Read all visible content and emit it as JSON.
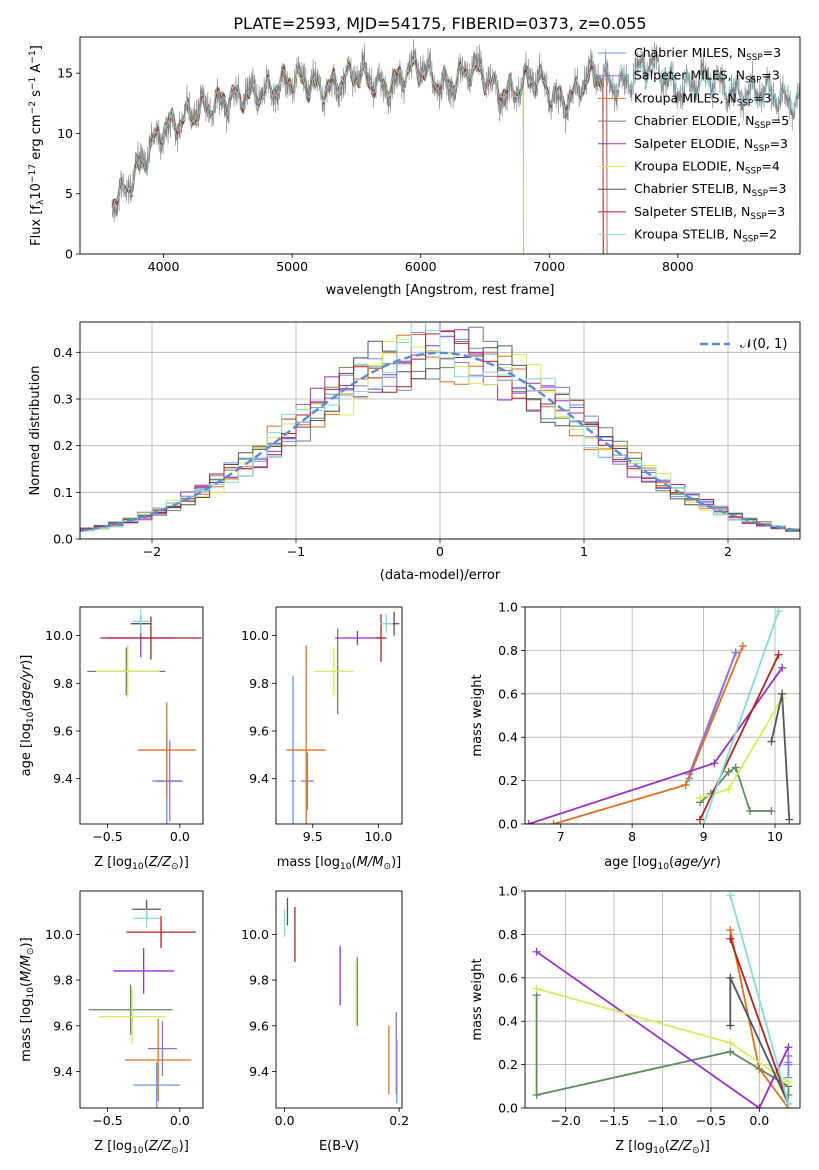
{
  "figure": {
    "title": "PLATE=2593, MJD=54175, FIBERID=0373, z=0.055"
  },
  "models": [
    {
      "name": "Chabrier MILES",
      "nssp": "3",
      "color": "#6495ed"
    },
    {
      "name": "Salpeter MILES",
      "nssp": "3",
      "color": "#9370db"
    },
    {
      "name": "Kroupa MILES",
      "nssp": "3",
      "color": "#e07020"
    },
    {
      "name": "Chabrier ELODIE",
      "nssp": "5",
      "color": "#5f8b5f"
    },
    {
      "name": "Salpeter ELODIE",
      "nssp": "3",
      "color": "#9932cc"
    },
    {
      "name": "Kroupa ELODIE",
      "nssp": "4",
      "color": "#d4ed5a"
    },
    {
      "name": "Chabrier STELIB",
      "nssp": "3",
      "color": "#555555"
    },
    {
      "name": "Salpeter STELIB",
      "nssp": "3",
      "color": "#b22222"
    },
    {
      "name": "Kroupa STELIB",
      "nssp": "2",
      "color": "#87dcdc"
    }
  ],
  "chart_data": [
    {
      "id": "spectrum",
      "type": "line",
      "xlabel": "wavelength [Angstrom, rest frame]",
      "ylabel": "Flux [f",
      "xlim": [
        3350,
        8950
      ],
      "ylim": [
        0,
        18
      ],
      "xticks": [
        4000,
        5000,
        6000,
        7000,
        8000
      ],
      "yticks": [
        0,
        5,
        10,
        15
      ],
      "continuum": [
        [
          3600,
          4.5
        ],
        [
          3700,
          5.8
        ],
        [
          3800,
          7.0
        ],
        [
          3900,
          8.5
        ],
        [
          4000,
          10.2
        ],
        [
          4100,
          11.0
        ],
        [
          4200,
          11.8
        ],
        [
          4400,
          12.3
        ],
        [
          4600,
          13.1
        ],
        [
          4800,
          13.7
        ],
        [
          5000,
          14.2
        ],
        [
          5200,
          14.1
        ],
        [
          5500,
          14.4
        ],
        [
          5800,
          14.5
        ],
        [
          6000,
          14.8
        ],
        [
          6300,
          14.7
        ],
        [
          6600,
          14.2
        ],
        [
          6800,
          13.8
        ],
        [
          7000,
          13.5
        ],
        [
          7200,
          13.6
        ],
        [
          7400,
          14.2
        ],
        [
          7600,
          15.1
        ],
        [
          7800,
          14.9
        ],
        [
          8000,
          14.4
        ],
        [
          8200,
          14.1
        ],
        [
          8400,
          13.8
        ],
        [
          8600,
          13.4
        ],
        [
          8800,
          13.0
        ],
        [
          8950,
          12.6
        ]
      ],
      "data_range": [
        3600,
        8950
      ],
      "model_ranges": [
        [
          3600,
          7450
        ],
        [
          3600,
          7450
        ],
        [
          3600,
          7450
        ],
        [
          3600,
          6800
        ],
        [
          3600,
          6800
        ],
        [
          3600,
          6800
        ],
        [
          3600,
          7420
        ],
        [
          3600,
          7420
        ],
        [
          3600,
          8950
        ]
      ],
      "data_color": "#808080",
      "legend": "right"
    },
    {
      "id": "residuals",
      "type": "histogram",
      "xlabel": "(data-model)/error",
      "ylabel": "Normed distribution",
      "xlim": [
        -2.5,
        2.5
      ],
      "ylim": [
        0,
        0.465
      ],
      "xticks": [
        -2,
        -1,
        0,
        1,
        2
      ],
      "yticks": [
        0,
        0.1,
        0.2,
        0.3,
        0.4
      ],
      "bin_width": 0.1,
      "reference": {
        "name": "𝒩(0, 1)",
        "mean": 0,
        "sigma": 1,
        "color": "#5b8bd6"
      },
      "grid": true,
      "legend": "top-right"
    },
    {
      "id": "age-vs-z",
      "type": "errorbar",
      "xlabel": "Z [log",
      "ylabel": "age  [log",
      "xlim": [
        -0.69,
        0.16
      ],
      "ylim": [
        9.21,
        10.12
      ],
      "xticks": [
        -0.5,
        0.0
      ],
      "yticks": [
        9.4,
        9.6,
        9.8,
        10.0
      ],
      "points": [
        {
          "x": -0.09,
          "xerr": 0.1,
          "y": 9.39,
          "yerr": 0.21
        },
        {
          "x": -0.07,
          "xerr": 0.09,
          "y": 9.39,
          "yerr": 0.17
        },
        {
          "x": -0.09,
          "xerr": 0.2,
          "y": 9.52,
          "yerr": 0.2
        },
        {
          "x": -0.37,
          "xerr": 0.27,
          "y": 9.85,
          "yerr": 0.1
        },
        {
          "x": -0.27,
          "xerr": 0.23,
          "y": 9.99,
          "yerr": 0.08
        },
        {
          "x": -0.36,
          "xerr": 0.22,
          "y": 9.85,
          "yerr": 0.11
        },
        {
          "x": -0.27,
          "xerr": 0.07,
          "y": 10.05,
          "yerr": 0.04
        },
        {
          "x": -0.2,
          "xerr": 0.35,
          "y": 9.99,
          "yerr": 0.09
        },
        {
          "x": -0.27,
          "xerr": 0.06,
          "y": 10.06,
          "yerr": 0.05
        }
      ]
    },
    {
      "id": "age-vs-mass",
      "type": "errorbar",
      "xlabel": "mass [log",
      "ylabel": "",
      "xlim": [
        9.22,
        10.18
      ],
      "ylim": [
        9.21,
        10.12
      ],
      "xticks": [
        9.5,
        10.0
      ],
      "yticks": [
        9.4,
        9.6,
        9.8,
        10.0
      ],
      "points": [
        {
          "x": 9.35,
          "xerr": 0.02,
          "y": 9.39,
          "yerr": 0.44
        },
        {
          "x": 9.46,
          "xerr": 0.05,
          "y": 9.39,
          "yerr": 0.12
        },
        {
          "x": 9.45,
          "xerr": 0.15,
          "y": 9.52,
          "yerr": 0.44
        },
        {
          "x": 9.69,
          "xerr": 0.04,
          "y": 9.85,
          "yerr": 0.18
        },
        {
          "x": 9.84,
          "xerr": 0.17,
          "y": 9.99,
          "yerr": 0.03
        },
        {
          "x": 9.66,
          "xerr": 0.15,
          "y": 9.85,
          "yerr": 0.1
        },
        {
          "x": 10.12,
          "xerr": 0.04,
          "y": 10.05,
          "yerr": 0.05
        },
        {
          "x": 10.02,
          "xerr": 0.04,
          "y": 9.99,
          "yerr": 0.1
        },
        {
          "x": 10.06,
          "xerr": 0.05,
          "y": 10.05,
          "yerr": 0.04
        }
      ]
    },
    {
      "id": "weights-vs-age",
      "type": "line",
      "xlabel": "age  [log",
      "ylabel": "mass weight",
      "xlim": [
        6.5,
        10.35
      ],
      "ylim": [
        0,
        1
      ],
      "xticks": [
        7,
        8,
        9,
        10
      ],
      "yticks": [
        0.0,
        0.2,
        0.4,
        0.6,
        0.8,
        1.0
      ],
      "grid": true,
      "series": [
        {
          "x": [
            8.8,
            9.45
          ],
          "y": [
            0.21,
            0.79
          ]
        },
        {
          "x": [
            8.8,
            9.45
          ],
          "y": [
            0.23,
            0.79
          ]
        },
        {
          "x": [
            6.9,
            8.75,
            9.55
          ],
          "y": [
            0.0,
            0.18,
            0.82
          ]
        },
        {
          "x": [
            8.95,
            9.1,
            9.35,
            9.45,
            9.65,
            9.95
          ],
          "y": [
            0.1,
            0.14,
            0.24,
            0.26,
            0.06,
            0.06
          ]
        },
        {
          "x": [
            6.55,
            9.15,
            10.1
          ],
          "y": [
            0.0,
            0.28,
            0.72
          ]
        },
        {
          "x": [
            8.95,
            9.35,
            10.1
          ],
          "y": [
            0.12,
            0.16,
            0.58
          ]
        },
        {
          "x": [
            9.95,
            10.1,
            10.2
          ],
          "y": [
            0.38,
            0.6,
            0.02
          ]
        },
        {
          "x": [
            8.95,
            10.05
          ],
          "y": [
            0.02,
            0.78
          ]
        },
        {
          "x": [
            9.0,
            10.05
          ],
          "y": [
            0.0,
            0.98
          ]
        }
      ]
    },
    {
      "id": "mass-vs-z",
      "type": "errorbar",
      "xlabel": "Z [log",
      "ylabel": "mass [log",
      "xlim": [
        -0.69,
        0.16
      ],
      "ylim": [
        9.24,
        10.19
      ],
      "xticks": [
        -0.5,
        0.0
      ],
      "yticks": [
        9.4,
        9.6,
        9.8,
        10.0
      ],
      "points": [
        {
          "x": -0.16,
          "xerr": 0.16,
          "y": 9.34,
          "yerr": 0.1
        },
        {
          "x": -0.12,
          "xerr": 0.1,
          "y": 9.5,
          "yerr": 0.12
        },
        {
          "x": -0.15,
          "xerr": 0.23,
          "y": 9.45,
          "yerr": 0.18
        },
        {
          "x": -0.34,
          "xerr": 0.29,
          "y": 9.67,
          "yerr": 0.11
        },
        {
          "x": -0.25,
          "xerr": 0.21,
          "y": 9.84,
          "yerr": 0.1
        },
        {
          "x": -0.33,
          "xerr": 0.23,
          "y": 9.64,
          "yerr": 0.12
        },
        {
          "x": -0.23,
          "xerr": 0.1,
          "y": 10.11,
          "yerr": 0.04
        },
        {
          "x": -0.13,
          "xerr": 0.24,
          "y": 10.01,
          "yerr": 0.07
        },
        {
          "x": -0.23,
          "xerr": 0.09,
          "y": 10.07,
          "yerr": 0.04
        }
      ]
    },
    {
      "id": "mass-vs-ebv",
      "type": "errorbar",
      "xlabel": "E(B-V)",
      "ylabel": "",
      "xlim": [
        -0.015,
        0.205
      ],
      "ylim": [
        9.24,
        10.19
      ],
      "xticks": [
        0.0,
        0.2
      ],
      "yticks": [
        9.4,
        9.6,
        9.8,
        10.0
      ],
      "points": [
        {
          "x": 0.196,
          "xerr": 0,
          "y": 9.4,
          "yerr": 0.14
        },
        {
          "x": 0.195,
          "xerr": 0,
          "y": 9.48,
          "yerr": 0.18
        },
        {
          "x": 0.182,
          "xerr": 0,
          "y": 9.45,
          "yerr": 0.15
        },
        {
          "x": 0.127,
          "xerr": 0,
          "y": 9.75,
          "yerr": 0.15
        },
        {
          "x": 0.097,
          "xerr": 0,
          "y": 9.82,
          "yerr": 0.13
        },
        {
          "x": 0.125,
          "xerr": 0,
          "y": 9.74,
          "yerr": 0.14
        },
        {
          "x": 0.005,
          "xerr": 0,
          "y": 10.1,
          "yerr": 0.06
        },
        {
          "x": 0.018,
          "xerr": 0,
          "y": 10.0,
          "yerr": 0.12
        },
        {
          "x": 0.0,
          "xerr": 0,
          "y": 10.05,
          "yerr": 0.06
        }
      ]
    },
    {
      "id": "weights-vs-z",
      "type": "line",
      "xlabel": "Z [log",
      "ylabel": "mass weight",
      "xlim": [
        -2.42,
        0.42
      ],
      "ylim": [
        0,
        1
      ],
      "xticks": [
        -2.0,
        -1.5,
        -1.0,
        -0.5,
        0.0
      ],
      "yticks": [
        0.0,
        0.2,
        0.4,
        0.6,
        0.8,
        1.0
      ],
      "grid": true,
      "series": [
        {
          "x": [
            0.3,
            0.3
          ],
          "y": [
            0.21,
            0.14
          ]
        },
        {
          "x": [
            0.3,
            0.3
          ],
          "y": [
            0.24,
            0.2
          ]
        },
        {
          "x": [
            -0.3,
            0.0,
            0.3
          ],
          "y": [
            0.82,
            0.18,
            0.0
          ]
        },
        {
          "x": [
            -2.3,
            -2.3,
            -0.3,
            0.3,
            0.3
          ],
          "y": [
            0.52,
            0.06,
            0.26,
            0.1,
            0.06
          ]
        },
        {
          "x": [
            -2.3,
            0.0,
            0.3
          ],
          "y": [
            0.72,
            0.0,
            0.28
          ]
        },
        {
          "x": [
            -2.3,
            -0.3,
            0.3
          ],
          "y": [
            0.55,
            0.3,
            0.12
          ]
        },
        {
          "x": [
            -0.3,
            -0.3,
            0.3
          ],
          "y": [
            0.38,
            0.6,
            0.02
          ]
        },
        {
          "x": [
            -0.3,
            0.3
          ],
          "y": [
            0.78,
            0.02
          ]
        },
        {
          "x": [
            -0.3,
            0.3
          ],
          "y": [
            0.98,
            0.02
          ]
        }
      ]
    }
  ]
}
